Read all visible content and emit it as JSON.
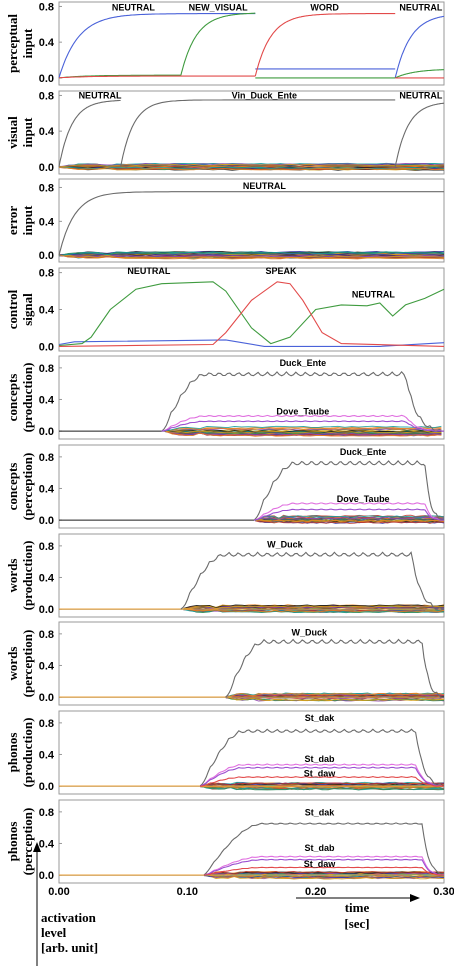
{
  "chart_data": {
    "type": "line",
    "xlim": [
      0.0,
      0.3
    ],
    "x_ticks": [
      "0.00",
      "0.10",
      "0.20",
      "0.30"
    ],
    "time_axis": {
      "label_line1": "time",
      "label_line2": "[sec]"
    },
    "y_axis_note": [
      "activation",
      "level",
      "[arb. unit]"
    ],
    "colors": {
      "blue": "#4a62d9",
      "green": "#3f9b3f",
      "red": "#e24a4a",
      "grey": "#6b6b6b",
      "pink": "#e070e0",
      "purple": "#9b4fd0",
      "black": "#111111",
      "orange": "#e8a23c"
    },
    "panels": [
      {
        "ylabel": [
          "perceptual",
          "input"
        ],
        "y_ticks": [
          "0.0",
          "0.4",
          "0.8"
        ],
        "ylim": [
          -0.08,
          0.85
        ],
        "band": false,
        "series": [
          {
            "color": "blue",
            "shape": "rise_decay",
            "x0": 0.0,
            "x1": 0.153,
            "y0": 0.0,
            "level": 0.72,
            "tau": 0.015,
            "tail": 0.1
          },
          {
            "color": "blue",
            "shape": "rise_decay",
            "x0": 0.153,
            "x1": 0.262,
            "y0": 0.1,
            "level": 0.1,
            "tau": 0.02,
            "tail": 0.0
          },
          {
            "color": "blue",
            "shape": "rise",
            "x0": 0.262,
            "x1": 0.3,
            "y0": 0.0,
            "level": 0.72,
            "tau": 0.012
          },
          {
            "color": "green",
            "shape": "rise_decay",
            "x0": 0.0,
            "x1": 0.095,
            "y0": 0.0,
            "level": 0.03,
            "tau": 0.02,
            "tail": 0.03
          },
          {
            "color": "green",
            "shape": "rise_decay",
            "x0": 0.095,
            "x1": 0.153,
            "y0": 0.03,
            "level": 0.73,
            "tau": 0.012,
            "tail": 0.0
          },
          {
            "color": "green",
            "shape": "rise_decay",
            "x0": 0.153,
            "x1": 0.262,
            "y0": 0.0,
            "level": 0.0,
            "tau": 0.02,
            "tail": 0.0
          },
          {
            "color": "green",
            "shape": "rise",
            "x0": 0.262,
            "x1": 0.3,
            "y0": 0.0,
            "level": 0.1,
            "tau": 0.015
          },
          {
            "color": "red",
            "shape": "rise_decay",
            "x0": 0.0,
            "x1": 0.153,
            "y0": 0.0,
            "level": 0.02,
            "tau": 0.02,
            "tail": 0.02
          },
          {
            "color": "red",
            "shape": "rise_decay",
            "x0": 0.153,
            "x1": 0.262,
            "y0": 0.02,
            "level": 0.72,
            "tau": 0.012,
            "tail": 0.0
          },
          {
            "color": "red",
            "shape": "rise",
            "x0": 0.262,
            "x1": 0.3,
            "y0": 0.0,
            "level": 0.0,
            "tau": 0.02
          }
        ],
        "labels": [
          {
            "text": "NEUTRAL",
            "x": 0.058,
            "y": 0.79
          },
          {
            "text": "NEW_VISUAL",
            "x": 0.124,
            "y": 0.79
          },
          {
            "text": "WORD",
            "x": 0.207,
            "y": 0.79
          },
          {
            "text": "NEUTRAL",
            "x": 0.282,
            "y": 0.79
          }
        ]
      },
      {
        "ylabel": [
          "visual",
          "input"
        ],
        "y_ticks": [
          "0.0",
          "0.4",
          "0.8"
        ],
        "ylim": [
          -0.08,
          0.85
        ],
        "band": true,
        "band_x0": 0.0,
        "band_x1": 0.3,
        "band_h": 0.04,
        "series": [
          {
            "color": "grey",
            "shape": "rise_decay",
            "x0": 0.0,
            "x1": 0.048,
            "y0": 0.0,
            "level": 0.75,
            "tau": 0.01,
            "tail": 0.0
          },
          {
            "color": "grey",
            "shape": "rise_decay",
            "x0": 0.048,
            "x1": 0.262,
            "y0": 0.0,
            "level": 0.75,
            "tau": 0.01,
            "tail": 0.0
          },
          {
            "color": "grey",
            "shape": "rise",
            "x0": 0.262,
            "x1": 0.3,
            "y0": 0.0,
            "level": 0.73,
            "tau": 0.01
          }
        ],
        "labels": [
          {
            "text": "NEUTRAL",
            "x": 0.032,
            "y": 0.8
          },
          {
            "text": "Vin_Duck_Ente",
            "x": 0.16,
            "y": 0.8
          },
          {
            "text": "NEUTRAL",
            "x": 0.282,
            "y": 0.8
          }
        ]
      },
      {
        "ylabel": [
          "error",
          "input"
        ],
        "y_ticks": [
          "0.0",
          "0.4",
          "0.8"
        ],
        "ylim": [
          -0.08,
          0.9
        ],
        "band": true,
        "band_x0": 0.0,
        "band_x1": 0.3,
        "band_h": 0.05,
        "series": [
          {
            "color": "grey",
            "shape": "rise",
            "x0": 0.0,
            "x1": 0.3,
            "y0": 0.0,
            "level": 0.75,
            "tau": 0.012
          }
        ],
        "labels": [
          {
            "text": "NEUTRAL",
            "x": 0.16,
            "y": 0.82
          }
        ]
      },
      {
        "ylabel": [
          "control",
          "signal"
        ],
        "y_ticks": [
          "0.0",
          "0.4",
          "0.8"
        ],
        "ylim": [
          -0.05,
          0.85
        ],
        "band": false,
        "series": [
          {
            "color": "blue",
            "shape": "pts",
            "pts": [
              [
                0,
                0.02
              ],
              [
                0.012,
                0.05
              ],
              [
                0.13,
                0.07
              ],
              [
                0.16,
                0.0
              ],
              [
                0.25,
                0.0
              ],
              [
                0.3,
                0.04
              ]
            ]
          },
          {
            "color": "green",
            "shape": "pts",
            "pts": [
              [
                0,
                0.01
              ],
              [
                0.018,
                0.03
              ],
              [
                0.025,
                0.1
              ],
              [
                0.04,
                0.4
              ],
              [
                0.06,
                0.62
              ],
              [
                0.08,
                0.68
              ],
              [
                0.12,
                0.7
              ],
              [
                0.13,
                0.6
              ],
              [
                0.15,
                0.2
              ],
              [
                0.165,
                0.03
              ],
              [
                0.18,
                0.1
              ],
              [
                0.2,
                0.4
              ],
              [
                0.22,
                0.45
              ],
              [
                0.24,
                0.44
              ],
              [
                0.25,
                0.47
              ],
              [
                0.26,
                0.33
              ],
              [
                0.27,
                0.45
              ],
              [
                0.285,
                0.52
              ],
              [
                0.3,
                0.62
              ]
            ]
          },
          {
            "color": "red",
            "shape": "pts",
            "pts": [
              [
                0,
                0.0
              ],
              [
                0.12,
                0.02
              ],
              [
                0.13,
                0.15
              ],
              [
                0.15,
                0.5
              ],
              [
                0.17,
                0.7
              ],
              [
                0.18,
                0.68
              ],
              [
                0.19,
                0.5
              ],
              [
                0.205,
                0.15
              ],
              [
                0.22,
                0.03
              ],
              [
                0.3,
                0.0
              ]
            ]
          }
        ],
        "labels": [
          {
            "text": "NEUTRAL",
            "x": 0.07,
            "y": 0.82
          },
          {
            "text": "SPEAK",
            "x": 0.173,
            "y": 0.82
          },
          {
            "text": "NEUTRAL",
            "x": 0.245,
            "y": 0.56
          }
        ]
      },
      {
        "ylabel": [
          "concepts",
          "(production)"
        ],
        "y_ticks": [
          "0.0",
          "0.4",
          "0.8"
        ],
        "ylim": [
          -0.1,
          0.95
        ],
        "band": true,
        "band_x0": 0.083,
        "band_x1": 0.298,
        "band_h": 0.07,
        "series": [
          {
            "color": "grey",
            "shape": "plateau",
            "x0": 0.08,
            "x1": 0.3,
            "level": 0.75,
            "rise_end": 0.115,
            "fall_start": 0.27,
            "wiggle": 0.05
          },
          {
            "color": "pink",
            "shape": "plateau",
            "x0": 0.08,
            "x1": 0.3,
            "level": 0.2,
            "rise_end": 0.115,
            "fall_start": 0.27,
            "wiggle": 0.015
          },
          {
            "color": "purple",
            "shape": "plateau",
            "x0": 0.08,
            "x1": 0.3,
            "level": 0.13,
            "rise_end": 0.115,
            "fall_start": 0.27,
            "wiggle": 0.01
          }
        ],
        "labels": [
          {
            "text": "Duck_Ente",
            "x": 0.19,
            "y": 0.86
          },
          {
            "text": "Dove_Taube",
            "x": 0.19,
            "y": 0.25
          }
        ]
      },
      {
        "ylabel": [
          "concepts",
          "(perception)"
        ],
        "y_ticks": [
          "0.0",
          "0.4",
          "0.8"
        ],
        "ylim": [
          -0.1,
          0.95
        ],
        "band": true,
        "band_x0": 0.153,
        "band_x1": 0.3,
        "band_h": 0.07,
        "series": [
          {
            "color": "grey",
            "shape": "plateau",
            "x0": 0.152,
            "x1": 0.3,
            "level": 0.75,
            "rise_end": 0.185,
            "fall_start": 0.285,
            "wiggle": 0.05
          },
          {
            "color": "pink",
            "shape": "plateau",
            "x0": 0.152,
            "x1": 0.3,
            "level": 0.22,
            "rise_end": 0.185,
            "fall_start": 0.285,
            "wiggle": 0.015
          },
          {
            "color": "purple",
            "shape": "plateau",
            "x0": 0.152,
            "x1": 0.3,
            "level": 0.14,
            "rise_end": 0.185,
            "fall_start": 0.285,
            "wiggle": 0.01
          }
        ],
        "labels": [
          {
            "text": "Duck_Ente",
            "x": 0.237,
            "y": 0.86
          },
          {
            "text": "Dove_Taube",
            "x": 0.237,
            "y": 0.27
          }
        ]
      },
      {
        "ylabel": [
          "words",
          "(production)"
        ],
        "y_ticks": [
          "0.0",
          "0.4",
          "0.8"
        ],
        "ylim": [
          -0.1,
          0.95
        ],
        "band": true,
        "band_x0": 0.097,
        "band_x1": 0.3,
        "band_h": 0.06,
        "series": [
          {
            "color": "orange",
            "shape": "flat",
            "x0": 0.0,
            "x1": 0.3,
            "level": 0.0
          },
          {
            "color": "grey",
            "shape": "plateau",
            "x0": 0.095,
            "x1": 0.3,
            "level": 0.72,
            "rise_end": 0.13,
            "fall_start": 0.275,
            "wiggle": 0.05
          }
        ],
        "labels": [
          {
            "text": "W_Duck",
            "x": 0.176,
            "y": 0.82
          }
        ]
      },
      {
        "ylabel": [
          "words",
          "(perception)"
        ],
        "y_ticks": [
          "0.0",
          "0.4",
          "0.8"
        ],
        "ylim": [
          -0.1,
          0.95
        ],
        "band": true,
        "band_x0": 0.13,
        "band_x1": 0.3,
        "band_h": 0.06,
        "series": [
          {
            "color": "orange",
            "shape": "flat",
            "x0": 0.0,
            "x1": 0.3,
            "level": 0.0
          },
          {
            "color": "grey",
            "shape": "plateau",
            "x0": 0.13,
            "x1": 0.3,
            "level": 0.73,
            "rise_end": 0.16,
            "fall_start": 0.283,
            "wiggle": 0.05
          }
        ],
        "labels": [
          {
            "text": "W_Duck",
            "x": 0.195,
            "y": 0.82
          }
        ]
      },
      {
        "ylabel": [
          "phonos",
          "(production)"
        ],
        "y_ticks": [
          "0.0",
          "0.4",
          "0.8"
        ],
        "ylim": [
          -0.1,
          0.95
        ],
        "band": true,
        "band_x0": 0.11,
        "band_x1": 0.3,
        "band_h": 0.05,
        "series": [
          {
            "color": "orange",
            "shape": "flat",
            "x0": 0.0,
            "x1": 0.3,
            "level": 0.0
          },
          {
            "color": "grey",
            "shape": "plateau",
            "x0": 0.11,
            "x1": 0.3,
            "level": 0.72,
            "rise_end": 0.145,
            "fall_start": 0.278,
            "wiggle": 0.04
          },
          {
            "color": "pink",
            "shape": "plateau",
            "x0": 0.11,
            "x1": 0.3,
            "level": 0.28,
            "rise_end": 0.145,
            "fall_start": 0.278,
            "wiggle": 0.015
          },
          {
            "color": "purple",
            "shape": "plateau",
            "x0": 0.11,
            "x1": 0.3,
            "level": 0.24,
            "rise_end": 0.145,
            "fall_start": 0.278,
            "wiggle": 0.012
          },
          {
            "color": "red",
            "shape": "plateau",
            "x0": 0.11,
            "x1": 0.3,
            "level": 0.12,
            "rise_end": 0.145,
            "fall_start": 0.278,
            "wiggle": 0.01
          }
        ],
        "labels": [
          {
            "text": "St_dak",
            "x": 0.203,
            "y": 0.86
          },
          {
            "text": "St_dab",
            "x": 0.203,
            "y": 0.34
          },
          {
            "text": "St_daw",
            "x": 0.203,
            "y": 0.16
          }
        ]
      },
      {
        "ylabel": [
          "phonos",
          "(perception)"
        ],
        "y_ticks": [
          "0.0",
          "0.4",
          "0.8"
        ],
        "ylim": [
          -0.1,
          0.95
        ],
        "band": true,
        "band_x0": 0.113,
        "band_x1": 0.3,
        "band_h": 0.05,
        "series": [
          {
            "color": "orange",
            "shape": "flat",
            "x0": 0.0,
            "x1": 0.3,
            "level": 0.0
          },
          {
            "color": "grey",
            "shape": "plateau",
            "x0": 0.113,
            "x1": 0.3,
            "level": 0.66,
            "rise_end": 0.16,
            "fall_start": 0.283,
            "wiggle": 0.015
          },
          {
            "color": "pink",
            "shape": "plateau",
            "x0": 0.113,
            "x1": 0.3,
            "level": 0.24,
            "rise_end": 0.16,
            "fall_start": 0.283,
            "wiggle": 0.01
          },
          {
            "color": "purple",
            "shape": "plateau",
            "x0": 0.113,
            "x1": 0.3,
            "level": 0.2,
            "rise_end": 0.16,
            "fall_start": 0.283,
            "wiggle": 0.008
          },
          {
            "color": "red",
            "shape": "plateau",
            "x0": 0.113,
            "x1": 0.3,
            "level": 0.1,
            "rise_end": 0.16,
            "fall_start": 0.283,
            "wiggle": 0.006
          }
        ],
        "labels": [
          {
            "text": "St_dak",
            "x": 0.203,
            "y": 0.79
          },
          {
            "text": "St_dab",
            "x": 0.203,
            "y": 0.34
          },
          {
            "text": "St_daw",
            "x": 0.203,
            "y": 0.14
          }
        ]
      }
    ]
  }
}
